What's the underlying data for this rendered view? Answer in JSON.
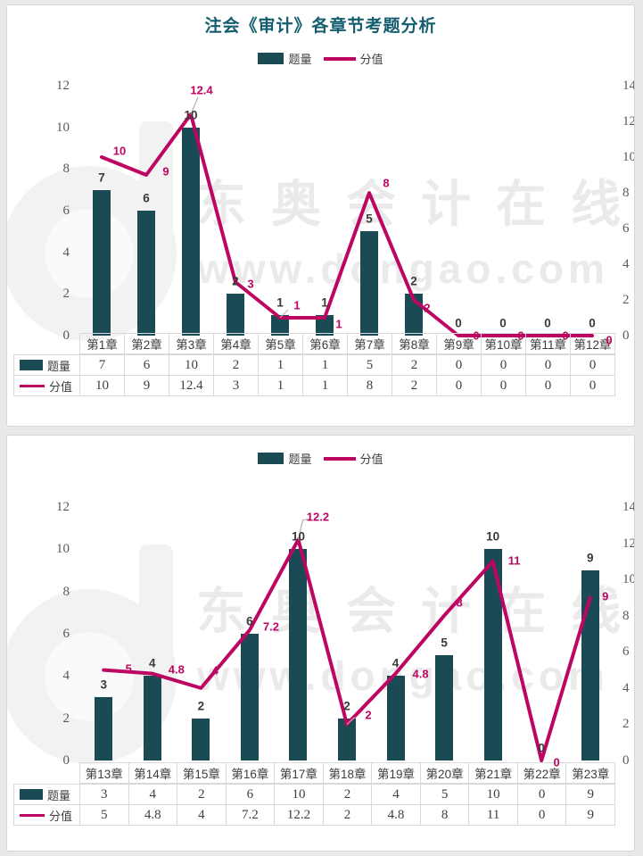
{
  "page": {
    "background": "#e9e9e9"
  },
  "theme": {
    "bar_color": "#1a4b54",
    "line_color": "#bd0562",
    "title_color": "#135e6e",
    "axis_text_color": "#595959",
    "border_color": "#d9d9d9",
    "watermark_color": "#eaeaea"
  },
  "title": "注会《审计》各章节考题分析",
  "legend": {
    "bar_label": "题量",
    "line_label": "分值"
  },
  "watermark": {
    "text": "东奥会计在线",
    "url": "www.dongao.com"
  },
  "chart_data": [
    {
      "type": "combo_bar_line",
      "title": "注会《审计》各章节考题分析",
      "categories": [
        "第1章",
        "第2章",
        "第3章",
        "第4章",
        "第5章",
        "第6章",
        "第7章",
        "第8章",
        "第9章",
        "第10章",
        "第11章",
        "第12章"
      ],
      "series": [
        {
          "name": "题量",
          "type": "bar",
          "axis": "left",
          "values": [
            7,
            6,
            10,
            2,
            1,
            1,
            5,
            2,
            0,
            0,
            0,
            0
          ]
        },
        {
          "name": "分值",
          "type": "line",
          "axis": "right",
          "values": [
            10,
            9,
            12.4,
            3,
            1,
            1,
            8,
            2,
            0,
            0,
            0,
            0
          ]
        }
      ],
      "left_axis": {
        "min": 0,
        "max": 12,
        "step": 2
      },
      "right_axis": {
        "min": 0,
        "max": 14,
        "step": 2
      },
      "legend_position": "top",
      "grid": false,
      "data_table": true
    },
    {
      "type": "combo_bar_line",
      "title": "",
      "categories": [
        "第13章",
        "第14章",
        "第15章",
        "第16章",
        "第17章",
        "第18章",
        "第19章",
        "第20章",
        "第21章",
        "第22章",
        "第23章"
      ],
      "series": [
        {
          "name": "题量",
          "type": "bar",
          "axis": "left",
          "values": [
            3,
            4,
            2,
            6,
            10,
            2,
            4,
            5,
            10,
            0,
            9
          ]
        },
        {
          "name": "分值",
          "type": "line",
          "axis": "right",
          "values": [
            5,
            4.8,
            4,
            7.2,
            12.2,
            2,
            4.8,
            8,
            11,
            0,
            9
          ]
        }
      ],
      "left_axis": {
        "min": 0,
        "max": 12,
        "step": 2
      },
      "right_axis": {
        "min": 0,
        "max": 14,
        "step": 2
      },
      "legend_position": "top",
      "grid": false,
      "data_table": true
    }
  ]
}
